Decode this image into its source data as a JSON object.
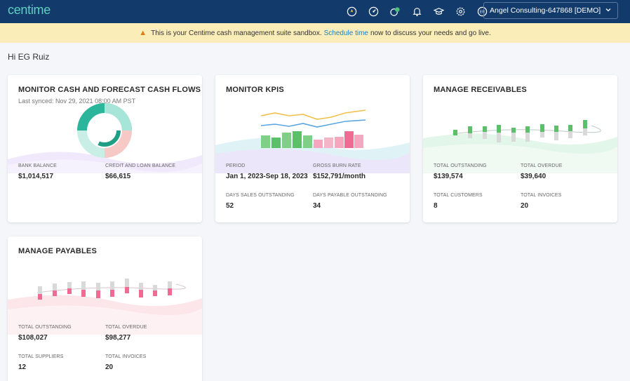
{
  "app": {
    "logo": "centime",
    "account_label": "Angel Consulting-647868 [DEMO]",
    "nav_icons": [
      "rocket-icon",
      "gauge-icon",
      "money-icon",
      "bell-icon",
      "graduation-icon",
      "gear-icon",
      "user-avatar-icon"
    ],
    "avatar_initials": "ER"
  },
  "banner": {
    "text_before": "This is your Centime cash management suite sandbox.",
    "link": "Schedule time",
    "text_after": "now to discuss your needs and go live."
  },
  "greeting": "Hi EG Ruiz",
  "cards": {
    "cash": {
      "title": "MONITOR CASH AND FORECAST CASH FLOWS",
      "subtitle": "Last synced: Nov 29, 2021 08:00 AM PST",
      "kpis": [
        {
          "label": "BANK BALANCE",
          "value": "$1,014,517"
        },
        {
          "label": "CREDIT AND LOAN BALANCE",
          "value": "$66,615"
        }
      ]
    },
    "kpis": {
      "title": "MONITOR KPIS",
      "kpis": [
        {
          "label": "PERIOD",
          "value": "Jan 1, 2023-Sep 18, 2023"
        },
        {
          "label": "GROSS BURN RATE",
          "value": "$152,791/month"
        },
        {
          "label": "DAYS SALES OUTSTANDING",
          "value": "52"
        },
        {
          "label": "DAYS PAYABLE OUTSTANDING",
          "value": "34"
        }
      ]
    },
    "receivables": {
      "title": "MANAGE RECEIVABLES",
      "kpis": [
        {
          "label": "TOTAL OUTSTANDING",
          "value": "$139,574"
        },
        {
          "label": "TOTAL OVERDUE",
          "value": "$39,640"
        },
        {
          "label": "TOTAL CUSTOMERS",
          "value": "8"
        },
        {
          "label": "TOTAL INVOICES",
          "value": "20"
        }
      ]
    },
    "payables": {
      "title": "MANAGE PAYABLES",
      "kpis": [
        {
          "label": "TOTAL OUTSTANDING",
          "value": "$108,027"
        },
        {
          "label": "TOTAL OVERDUE",
          "value": "$98,277"
        },
        {
          "label": "TOTAL SUPPLIERS",
          "value": "12"
        },
        {
          "label": "TOTAL INVOICES",
          "value": "20"
        }
      ]
    }
  },
  "colors": {
    "nav_bg": "#123a6b",
    "brand_teal": "#5fd0c0",
    "banner_bg": "#fbedb8",
    "link": "#1a7fc1",
    "green": "#5cbf6a",
    "pink": "#ef6b93"
  }
}
